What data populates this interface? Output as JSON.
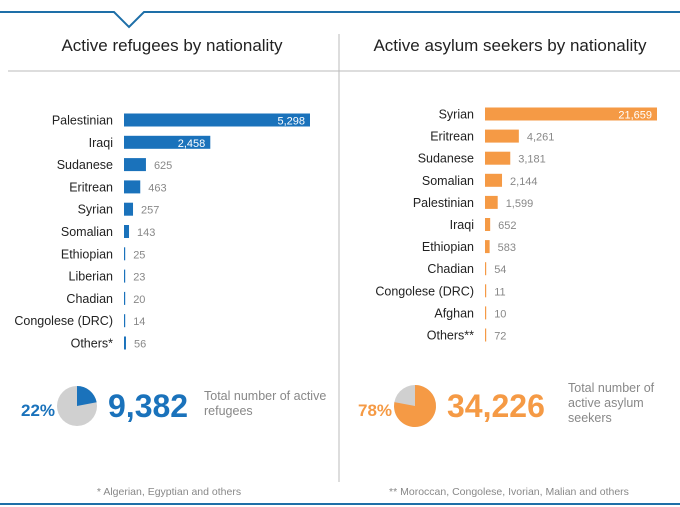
{
  "chart_data": [
    {
      "type": "bar",
      "orientation": "horizontal",
      "title": "Active refugees by nationality",
      "categories": [
        "Palestinian",
        "Iraqi",
        "Sudanese",
        "Eritrean",
        "Syrian",
        "Somalian",
        "Ethiopian",
        "Liberian",
        "Chadian",
        "Congolese (DRC)",
        "Others*"
      ],
      "values": [
        5298,
        2458,
        625,
        463,
        257,
        143,
        25,
        23,
        20,
        14,
        56
      ],
      "value_labels": [
        "5,298",
        "2,458",
        "625",
        "463",
        "257",
        "143",
        "25",
        "23",
        "20",
        "14",
        "56"
      ],
      "color": "#1a72bb",
      "summary": {
        "percent_label": "22%",
        "percent": 22,
        "total_label": "9,382",
        "caption_line1": "Total number of active",
        "caption_line2": "refugees"
      },
      "footnote": "* Algerian, Egyptian and others"
    },
    {
      "type": "bar",
      "orientation": "horizontal",
      "title": "Active asylum seekers by nationality",
      "categories": [
        "Syrian",
        "Eritrean",
        "Sudanese",
        "Somalian",
        "Palestinian",
        "Iraqi",
        "Ethiopian",
        "Chadian",
        "Congolese (DRC)",
        "Afghan",
        "Others**"
      ],
      "values": [
        21659,
        4261,
        3181,
        2144,
        1599,
        652,
        583,
        54,
        11,
        10,
        72
      ],
      "value_labels": [
        "21,659",
        "4,261",
        "3,181",
        "2,144",
        "1,599",
        "652",
        "583",
        "54",
        "11",
        "10",
        "72"
      ],
      "color": "#f59a45",
      "summary": {
        "percent_label": "78%",
        "percent": 78,
        "total_label": "34,226",
        "caption_line1": "Total number of",
        "caption_line2": "active asylum",
        "caption_line3": "seekers"
      },
      "footnote": "** Moroccan, Congolese, Ivorian, Malian and others"
    }
  ],
  "colors": {
    "accent_line": "#1e6fa8",
    "divider": "#bbbbbb",
    "label": "#222222",
    "value": "#888888",
    "pie_rest": "#d0d0d0"
  }
}
